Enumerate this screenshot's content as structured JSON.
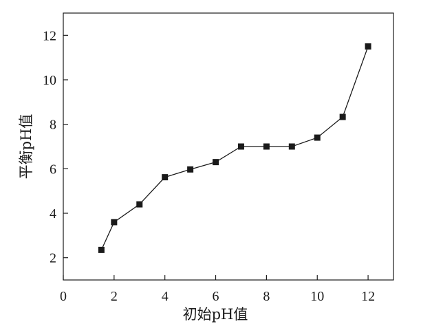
{
  "chart_data": {
    "type": "line",
    "title": "",
    "xlabel": "初始pH值",
    "ylabel": "平衡pH值",
    "xlim": [
      0,
      13
    ],
    "ylim": [
      1,
      13
    ],
    "x_ticks": [
      0,
      2,
      4,
      6,
      8,
      10,
      12
    ],
    "y_ticks": [
      2,
      4,
      6,
      8,
      10,
      12
    ],
    "x_tick_labels": [
      "0",
      "2",
      "4",
      "6",
      "8",
      "10",
      "12"
    ],
    "y_tick_labels": [
      "2",
      "4",
      "6",
      "8",
      "10",
      "12"
    ],
    "grid": false,
    "legend": "none",
    "marker": "square",
    "line_color": "#1a1a1a",
    "marker_color": "#1a1a1a",
    "series": [
      {
        "x": [
          1.5,
          2,
          3,
          4,
          5,
          6,
          7,
          8,
          9,
          10,
          11,
          12
        ],
        "y": [
          2.35,
          3.6,
          4.4,
          5.62,
          5.97,
          6.3,
          7.0,
          7.0,
          7.0,
          7.4,
          8.33,
          11.5
        ]
      }
    ]
  }
}
